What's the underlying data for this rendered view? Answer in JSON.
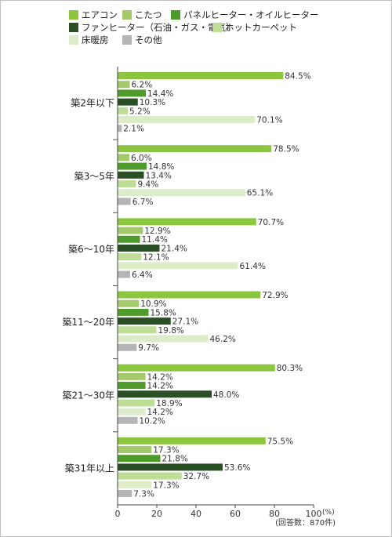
{
  "chart_data": {
    "type": "bar",
    "orientation": "horizontal",
    "categories": [
      "築2年以下",
      "築3～5年",
      "築6～10年",
      "築11～20年",
      "築21～30年",
      "築31年以上"
    ],
    "series": [
      {
        "name": "エアコン",
        "color": "#8cc63f",
        "values": [
          84.5,
          78.5,
          70.7,
          72.9,
          80.3,
          75.5
        ]
      },
      {
        "name": "こたつ",
        "color": "#a3c96b",
        "values": [
          6.2,
          6.0,
          12.9,
          10.9,
          14.2,
          17.3
        ]
      },
      {
        "name": "パネルヒーター・オイルヒーター",
        "color": "#4e9a2a",
        "values": [
          14.4,
          14.8,
          11.4,
          15.8,
          14.2,
          21.8
        ]
      },
      {
        "name": "ファンヒーター（石油・ガス・電気）",
        "color": "#2a4f24",
        "values": [
          10.3,
          13.4,
          21.4,
          27.1,
          48.0,
          53.6
        ]
      },
      {
        "name": "ホットカーペット",
        "color": "#bedd97",
        "values": [
          5.2,
          9.4,
          12.1,
          19.8,
          18.9,
          32.7
        ]
      },
      {
        "name": "床暖房",
        "color": "#dcebc8",
        "values": [
          70.1,
          65.1,
          61.4,
          46.2,
          14.2,
          17.3
        ]
      },
      {
        "name": "その他",
        "color": "#b5b5b5",
        "values": [
          2.1,
          6.7,
          6.4,
          9.7,
          10.2,
          7.3
        ]
      }
    ],
    "xlim": [
      0,
      100
    ],
    "xticks": [
      "0",
      "20",
      "40",
      "60",
      "80",
      "100"
    ],
    "unit": "(%)",
    "note": "(回答数：870件)",
    "legend_position": "top",
    "grid": false
  }
}
